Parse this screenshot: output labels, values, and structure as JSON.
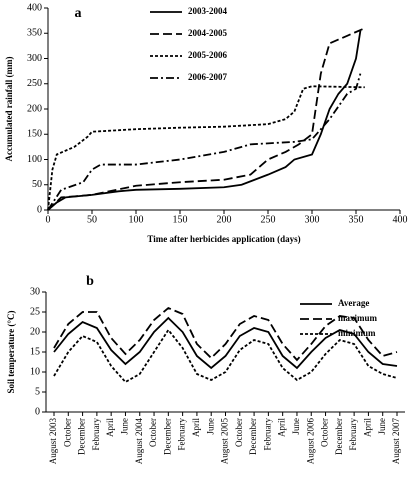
{
  "chart_data": [
    {
      "type": "line",
      "panel_label": "a",
      "x_label": "Time after herbicides application (days)",
      "y_label": "Accumulated rainfall (mm)",
      "xlim": [
        0,
        400
      ],
      "xticks": [
        0,
        50,
        100,
        150,
        200,
        250,
        300,
        350,
        400
      ],
      "ylim": [
        0,
        400
      ],
      "yticks": [
        0,
        50,
        100,
        150,
        200,
        250,
        300,
        350,
        400
      ],
      "legend": "top-center",
      "series": [
        {
          "name": "2003-2004",
          "color": "#000000",
          "dash": "none",
          "x": [
            0,
            10,
            20,
            50,
            80,
            100,
            150,
            200,
            220,
            250,
            270,
            280,
            300,
            310,
            320,
            330,
            340,
            350,
            355
          ],
          "values": [
            0,
            15,
            25,
            30,
            37,
            40,
            42,
            45,
            50,
            70,
            85,
            100,
            110,
            150,
            200,
            230,
            250,
            300,
            355
          ]
        },
        {
          "name": "2004-2005",
          "color": "#000000",
          "dash": "9,4",
          "x": [
            0,
            15,
            30,
            50,
            100,
            150,
            200,
            230,
            250,
            270,
            285,
            300,
            310,
            320,
            340,
            360
          ],
          "values": [
            0,
            25,
            27,
            30,
            48,
            55,
            60,
            70,
            100,
            115,
            130,
            150,
            270,
            330,
            345,
            360
          ]
        },
        {
          "name": "2005-2006",
          "color": "#000000",
          "dash": "3,2",
          "x": [
            0,
            5,
            10,
            30,
            45,
            50,
            100,
            150,
            200,
            250,
            270,
            280,
            290,
            300,
            360
          ],
          "values": [
            0,
            80,
            110,
            125,
            145,
            155,
            160,
            163,
            165,
            170,
            180,
            195,
            240,
            245,
            243
          ]
        },
        {
          "name": "2006-2007",
          "color": "#000000",
          "dash": "8,3,2,3",
          "x": [
            0,
            15,
            40,
            50,
            60,
            100,
            150,
            200,
            230,
            280,
            300,
            320,
            340,
            350,
            355
          ],
          "values": [
            0,
            40,
            55,
            80,
            90,
            90,
            100,
            115,
            130,
            135,
            140,
            180,
            230,
            240,
            270
          ]
        }
      ]
    },
    {
      "type": "line",
      "panel_label": "b",
      "y_label": "Soil temperature (°C)",
      "ylim": [
        0,
        30
      ],
      "yticks": [
        0,
        5,
        10,
        15,
        20,
        25,
        30
      ],
      "legend": "top-right",
      "categories": [
        "August 2003",
        "October",
        "December",
        "February",
        "April",
        "June",
        "August 2004",
        "October",
        "December",
        "February",
        "April",
        "June",
        "August 2005",
        "October",
        "December",
        "February",
        "April",
        "June",
        "August 2006",
        "October",
        "December",
        "February",
        "April",
        "June",
        "August 2007"
      ],
      "series": [
        {
          "name": "Average",
          "color": "#000000",
          "dash": "none",
          "values": [
            15,
            19.5,
            22.5,
            21,
            15.5,
            12,
            15,
            20,
            23.5,
            20,
            14,
            11,
            14,
            19,
            21,
            20,
            14,
            11,
            15,
            18.5,
            20.5,
            19.5,
            15,
            12,
            11.5
          ]
        },
        {
          "name": "maximum",
          "color": "#000000",
          "dash": "9,4",
          "values": [
            16,
            22,
            25,
            25,
            18.5,
            14.5,
            18,
            23,
            26,
            24.5,
            17,
            13.5,
            17,
            22,
            24,
            23,
            17,
            13,
            17,
            21.5,
            24,
            23.5,
            18,
            14,
            15
          ]
        },
        {
          "name": "minimum",
          "color": "#000000",
          "dash": "3,2",
          "values": [
            9,
            15,
            19,
            17.5,
            11.5,
            7.5,
            9.5,
            15,
            20.5,
            16,
            9.5,
            8,
            10,
            15.5,
            18,
            17,
            11,
            8,
            10,
            14.5,
            18,
            17,
            11.5,
            9.5,
            8.5
          ]
        }
      ]
    }
  ]
}
